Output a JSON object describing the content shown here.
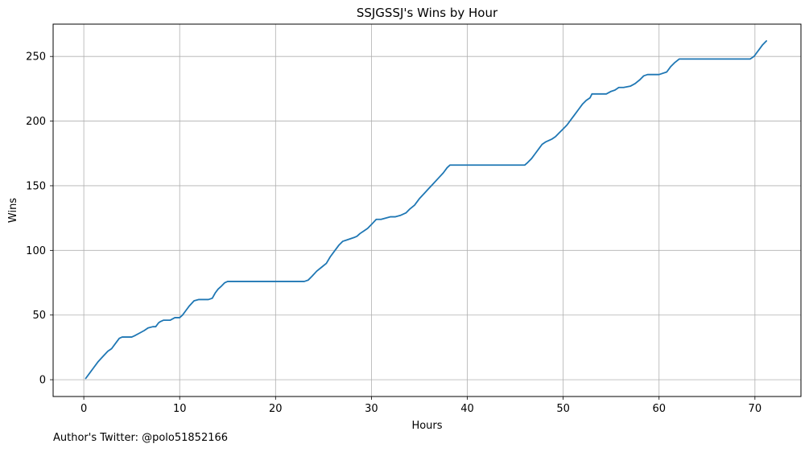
{
  "chart_data": {
    "type": "line",
    "title": "SSJGSSJ's Wins by Hour",
    "xlabel": "Hours",
    "ylabel": "Wins",
    "xlim": [
      -3.2,
      74.8
    ],
    "ylim": [
      -13,
      275
    ],
    "xticks": [
      0,
      10,
      20,
      30,
      40,
      50,
      60,
      70
    ],
    "yticks": [
      0,
      50,
      100,
      150,
      200,
      250
    ],
    "grid": true,
    "line_color": "#1f77b4",
    "series": [
      {
        "x": [
          0.2,
          0.6,
          1.0,
          1.5,
          2.0,
          2.5,
          2.9,
          3.3,
          3.7,
          4.0,
          4.5,
          5.0,
          5.3,
          5.8,
          6.3,
          6.7,
          7.2,
          7.5,
          7.8,
          8.0,
          8.3,
          9.0,
          9.5,
          10.0,
          10.3,
          10.6,
          11.0,
          11.5,
          12.0,
          12.5,
          13.0,
          13.4,
          13.7,
          14.0,
          14.3,
          14.7,
          15.0,
          17.0,
          20.0,
          23.0,
          23.4,
          23.8,
          24.3,
          24.8,
          25.3,
          25.7,
          26.2,
          26.6,
          27.0,
          27.4,
          27.8,
          28.2,
          28.5,
          28.8,
          29.2,
          29.6,
          30.0,
          30.5,
          31.0,
          31.5,
          32.0,
          32.5,
          33.0,
          33.3,
          33.6,
          34.0,
          34.5,
          35.0,
          35.5,
          36.0,
          36.5,
          37.0,
          37.5,
          37.9,
          38.2,
          40.0,
          43.0,
          46.0,
          46.3,
          46.7,
          47.1,
          47.5,
          47.8,
          48.2,
          48.5,
          48.8,
          49.2,
          49.6,
          50.0,
          50.4,
          50.8,
          51.2,
          51.6,
          52.0,
          52.4,
          52.8,
          53.0,
          54.0,
          54.5,
          55.0,
          55.4,
          55.8,
          56.3,
          57.0,
          57.5,
          58.0,
          58.4,
          58.8,
          59.2,
          60.0,
          60.8,
          61.2,
          61.6,
          62.1,
          63.0,
          66.0,
          69.5,
          69.9,
          70.2,
          70.5,
          70.8,
          71.2
        ],
        "y": [
          1,
          5,
          9,
          14,
          18,
          22,
          24,
          28,
          32,
          33,
          33,
          33,
          34,
          36,
          38,
          40,
          41,
          41,
          44,
          45,
          46,
          46,
          48,
          48,
          50,
          53,
          57,
          61,
          62,
          62,
          62,
          63,
          67,
          70,
          72,
          75,
          76,
          76,
          76,
          76,
          77,
          80,
          84,
          87,
          90,
          95,
          100,
          104,
          107,
          108,
          109,
          110,
          111,
          113,
          115,
          117,
          120,
          124,
          124,
          125,
          126,
          126,
          127,
          128,
          129,
          132,
          135,
          140,
          144,
          148,
          152,
          156,
          160,
          164,
          166,
          166,
          166,
          166,
          168,
          171,
          175,
          179,
          182,
          184,
          185,
          186,
          188,
          191,
          194,
          197,
          201,
          205,
          209,
          213,
          216,
          218,
          221,
          221,
          221,
          223,
          224,
          226,
          226,
          227,
          229,
          232,
          235,
          236,
          236,
          236,
          238,
          242,
          245,
          248,
          248,
          248,
          248,
          250,
          253,
          256,
          259,
          262
        ]
      }
    ]
  },
  "footer": {
    "text": "Author's Twitter: @polo51852166"
  }
}
